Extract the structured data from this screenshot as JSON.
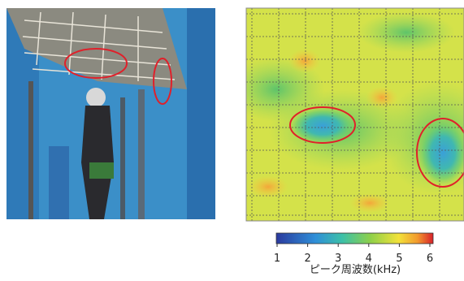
{
  "colorbar": {
    "ticks": [
      1,
      2,
      3,
      4,
      5,
      6
    ],
    "label": "ピーク周波数(kHz)"
  }
}
